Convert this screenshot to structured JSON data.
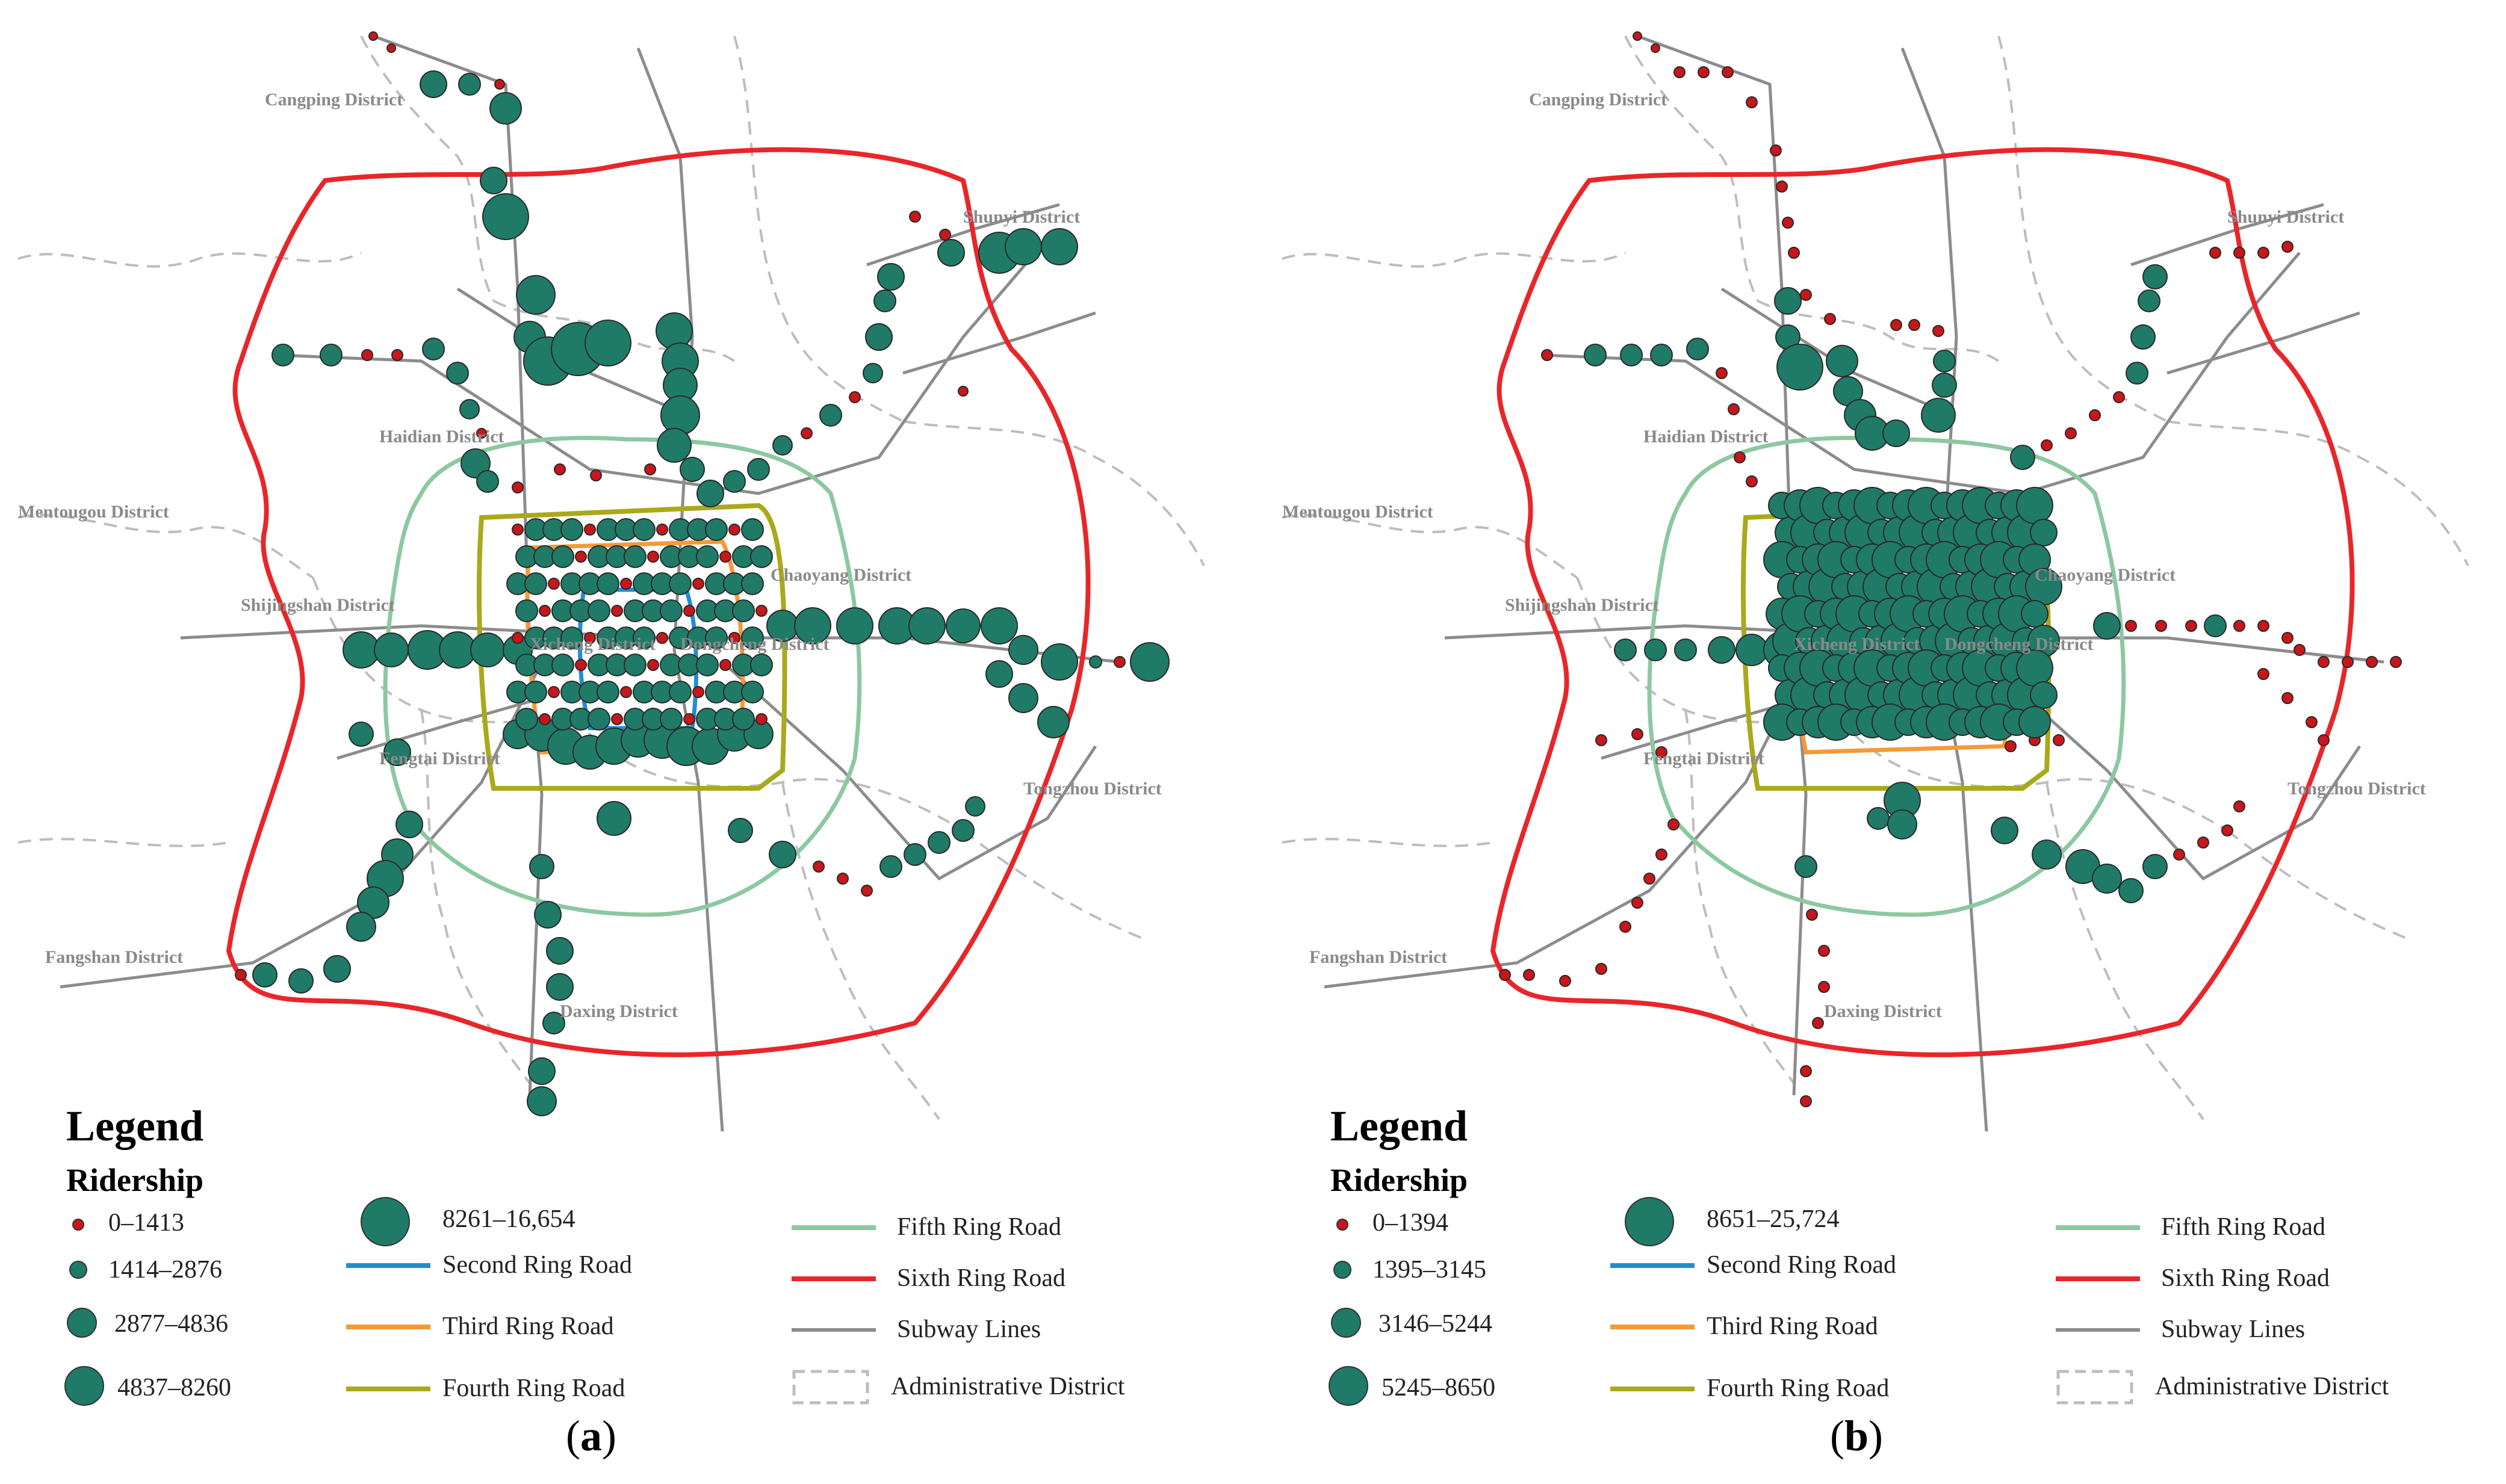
{
  "panels": [
    {
      "id": "a",
      "caption_letter": "a",
      "legend_title": "Legend",
      "legend_subtitle": "Ridership",
      "ridership_classes": [
        "0–1413",
        "1414–2876",
        "2877–4836",
        "4837–8260",
        "8261–16,654"
      ],
      "districts": {
        "cangping": "Cangping District",
        "shunyi": "Shunyi District",
        "haidian": "Haidian District",
        "mentougou": "Mentougou District",
        "chaoyang": "Chaoyang District",
        "shijingshan": "Shijingshan District",
        "xicheng": "Xicheng District",
        "dongcheng": "Dongcheng District",
        "fengtai": "Fengtai District",
        "tongzhou": "Tongzhou District",
        "fangshan": "Fangshan District",
        "daxing": "Daxing District"
      }
    },
    {
      "id": "b",
      "caption_letter": "b",
      "legend_title": "Legend",
      "legend_subtitle": "Ridership",
      "ridership_classes": [
        "0–1394",
        "1395–3145",
        "3146–5244",
        "5245–8650",
        "8651–25,724"
      ],
      "districts": {
        "cangping": "Cangping District",
        "shunyi": "Shunyi District",
        "haidian": "Haidian District",
        "mentougou": "Mentougou District",
        "chaoyang": "Chaoyang District",
        "shijingshan": "Shijingshan District",
        "xicheng": "Xicheng District",
        "dongcheng": "Dongcheng District",
        "fengtai": "Fengtai District",
        "tongzhou": "Tongzhou District",
        "fangshan": "Fangshan District",
        "daxing": "Daxing District"
      }
    }
  ],
  "line_legend": {
    "second_ring": "Second Ring Road",
    "third_ring": "Third Ring Road",
    "fourth_ring": "Fourth Ring Road",
    "fifth_ring": "Fifth Ring Road",
    "sixth_ring": "Sixth Ring Road",
    "subway": "Subway Lines",
    "admin": "Administrative District"
  },
  "colors": {
    "second_ring": "#1f8fd1",
    "third_ring": "#f39a3a",
    "fourth_ring": "#a9a91c",
    "fifth_ring": "#8cc8a0",
    "sixth_ring": "#e8262a",
    "subway": "#8c8c8c",
    "admin": "#bdbdbd",
    "station_small": "#c8161b",
    "station": "#1f7a68"
  }
}
